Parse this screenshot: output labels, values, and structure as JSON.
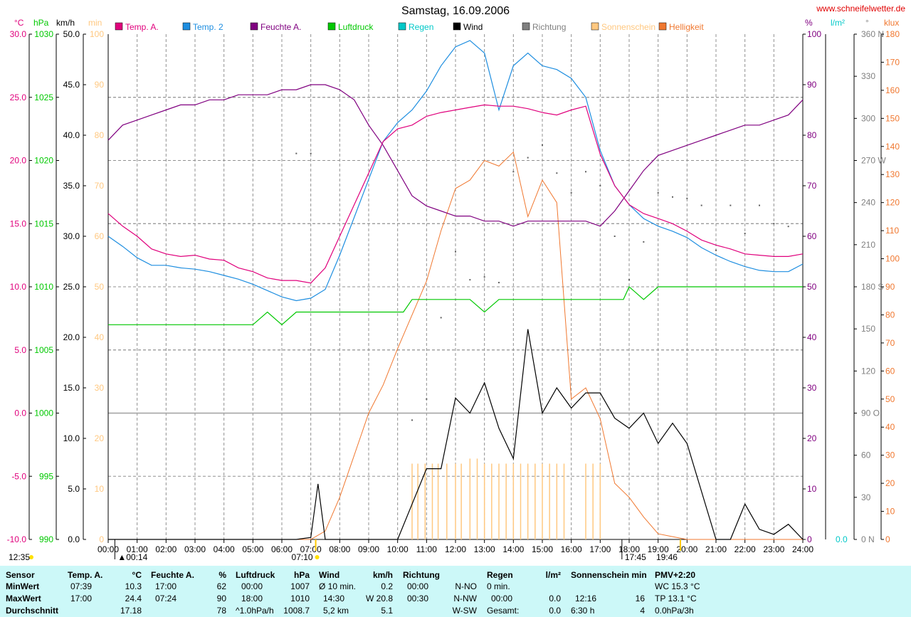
{
  "header": {
    "title": "Samstag, 16.09.2006",
    "website": "www.schneifelwetter.de"
  },
  "left_axes": {
    "temp_unit": "°C",
    "pressure_unit": "hPa",
    "wind_unit": "km/h",
    "sun_unit": "min",
    "temp_ticks": [
      "30.0",
      "25.0",
      "20.0",
      "15.0",
      "10.0",
      "5.0",
      "0.0",
      "-5.0",
      "-10.0"
    ],
    "pressure_ticks": [
      "1030",
      "1025",
      "1020",
      "1015",
      "1010",
      "1005",
      "1000",
      "995",
      "990"
    ],
    "wind_ticks": [
      "50.0",
      "45.0",
      "40.0",
      "35.0",
      "30.0",
      "25.0",
      "20.0",
      "15.0",
      "10.0",
      "5.0",
      "0.0"
    ],
    "sun_ticks": [
      "100",
      "90",
      "80",
      "70",
      "60",
      "50",
      "40",
      "30",
      "20",
      "10",
      "0"
    ]
  },
  "right_axes": {
    "humidity_unit": "%",
    "rain_unit": "l/m²",
    "direction_unit": "°",
    "light_unit": "klux",
    "humidity_ticks": [
      "100",
      "90",
      "80",
      "70",
      "60",
      "50",
      "40",
      "30",
      "20",
      "10",
      "0"
    ],
    "rain_ticks": [
      "0.0"
    ],
    "direction_ticks": [
      "360 N",
      "330",
      "300",
      "270 W",
      "240",
      "210",
      "180 S",
      "150",
      "120",
      "90 O",
      "60",
      "30",
      "0 N"
    ],
    "light_ticks": [
      "180",
      "170",
      "160",
      "150",
      "140",
      "130",
      "120",
      "110",
      "100",
      "90",
      "80",
      "70",
      "60",
      "50",
      "40",
      "30",
      "20",
      "10",
      "0"
    ]
  },
  "legend": [
    {
      "label": "Temp. A.",
      "color": "#e0007c"
    },
    {
      "label": "Temp. 2",
      "color": "#1e8ee0"
    },
    {
      "label": "Feuchte A.",
      "color": "#800080"
    },
    {
      "label": "Luftdruck",
      "color": "#00c800"
    },
    {
      "label": "Regen",
      "color": "#00c8c8"
    },
    {
      "label": "Wind",
      "color": "#000000"
    },
    {
      "label": "Richtung",
      "color": "#808080"
    },
    {
      "label": "Sonnenschein",
      "color": "#ffc880"
    },
    {
      "label": "Helligkeit",
      "color": "#f07830"
    }
  ],
  "x_ticks": [
    "00:00",
    "01:00",
    "02:00",
    "03:00",
    "04:00",
    "05:00",
    "06:00",
    "07:00",
    "08:00",
    "09:00",
    "10:00",
    "11:00",
    "12:00",
    "13:00",
    "14:00",
    "15:00",
    "16:00",
    "17:00",
    "18:00",
    "19:00",
    "20:00",
    "21:00",
    "22:00",
    "23:00",
    "24:00"
  ],
  "sun_markers": {
    "moonset": "12:35",
    "moonrise": "00:14",
    "sunrise": "07:10",
    "sunset_marker": "17:45",
    "sunset": "19:46"
  },
  "chart_data": {
    "type": "line",
    "title": "Samstag, 16.09.2006",
    "x_range": [
      "00:00",
      "24:00"
    ],
    "series": [
      {
        "name": "Temp. A.",
        "unit": "°C",
        "ylim": [
          -10,
          30
        ],
        "x": [
          0,
          0.5,
          1,
          1.5,
          2,
          2.5,
          3,
          3.5,
          4,
          4.5,
          5,
          5.5,
          6,
          6.5,
          7,
          7.5,
          8,
          8.5,
          9,
          9.5,
          10,
          10.5,
          11,
          11.5,
          12,
          12.5,
          13,
          13.5,
          14,
          14.5,
          15,
          15.5,
          16,
          16.5,
          17,
          17.5,
          18,
          18.5,
          19,
          19.5,
          20,
          20.5,
          21,
          21.5,
          22,
          22.5,
          23,
          23.5,
          24
        ],
        "y": [
          15.8,
          14.8,
          14.0,
          13.0,
          12.6,
          12.4,
          12.5,
          12.2,
          12.1,
          11.5,
          11.2,
          10.7,
          10.5,
          10.5,
          10.3,
          11.5,
          14.0,
          16.5,
          19.0,
          21.5,
          22.5,
          22.8,
          23.5,
          23.8,
          24.0,
          24.2,
          24.4,
          24.3,
          24.3,
          24.1,
          23.8,
          23.6,
          24.0,
          24.3,
          20.5,
          18.0,
          16.5,
          15.8,
          15.4,
          15.0,
          14.4,
          13.7,
          13.3,
          13.0,
          12.6,
          12.5,
          12.4,
          12.4,
          12.6
        ]
      },
      {
        "name": "Temp. 2",
        "unit": "°C",
        "ylim": [
          -10,
          30
        ],
        "x": [
          0,
          0.5,
          1,
          1.5,
          2,
          2.5,
          3,
          3.5,
          4,
          4.5,
          5,
          5.5,
          6,
          6.5,
          7,
          7.5,
          8,
          8.5,
          9,
          9.5,
          10,
          10.5,
          11,
          11.5,
          12,
          12.5,
          13,
          13.5,
          14,
          14.5,
          15,
          15.5,
          16,
          16.5,
          17,
          17.5,
          18,
          18.5,
          19,
          19.5,
          20,
          20.5,
          21,
          21.5,
          22,
          22.5,
          23,
          23.5,
          24
        ],
        "y": [
          14.0,
          13.2,
          12.3,
          11.7,
          11.7,
          11.5,
          11.4,
          11.2,
          10.9,
          10.6,
          10.2,
          9.7,
          9.2,
          8.9,
          9.1,
          9.8,
          12.5,
          15.5,
          18.5,
          21.5,
          23.0,
          24.0,
          25.5,
          27.5,
          29.0,
          29.5,
          28.5,
          24.0,
          27.5,
          28.5,
          27.5,
          27.2,
          26.5,
          25.0,
          20.8,
          18.0,
          16.5,
          15.4,
          14.8,
          14.4,
          13.9,
          13.1,
          12.5,
          12.0,
          11.6,
          11.3,
          11.2,
          11.2,
          11.8
        ]
      },
      {
        "name": "Feuchte A.",
        "unit": "%",
        "ylim": [
          0,
          100
        ],
        "x": [
          0,
          0.5,
          1,
          1.5,
          2,
          2.5,
          3,
          3.5,
          4,
          4.5,
          5,
          5.5,
          6,
          6.5,
          7,
          7.5,
          8,
          8.5,
          9,
          9.5,
          10,
          10.5,
          11,
          11.5,
          12,
          12.5,
          13,
          13.5,
          14,
          14.5,
          15,
          15.5,
          16,
          16.5,
          17,
          17.5,
          18,
          18.5,
          19,
          19.5,
          20,
          20.5,
          21,
          21.5,
          22,
          22.5,
          23,
          23.5,
          24
        ],
        "y": [
          79,
          82,
          83,
          84,
          85,
          86,
          86,
          87,
          87,
          88,
          88,
          88,
          89,
          89,
          90,
          90,
          89,
          87,
          82,
          78,
          73,
          68,
          66,
          65,
          64,
          64,
          63,
          63,
          62,
          63,
          63,
          63,
          63,
          63,
          62,
          65,
          69,
          73,
          76,
          77,
          78,
          79,
          80,
          81,
          82,
          82,
          83,
          84,
          87
        ]
      },
      {
        "name": "Luftdruck",
        "unit": "hPa",
        "ylim": [
          990,
          1030
        ],
        "x": [
          0,
          5,
          5.5,
          6,
          6.5,
          7,
          8,
          9,
          10,
          10.2,
          10.5,
          11,
          12,
          12.5,
          13,
          13.5,
          14,
          15,
          16,
          17,
          17.8,
          18,
          18.5,
          19,
          19.5,
          20,
          21,
          22,
          23,
          24
        ],
        "y": [
          1007,
          1007,
          1008,
          1007,
          1008,
          1008,
          1008,
          1008,
          1008,
          1008,
          1009,
          1009,
          1009,
          1009,
          1008,
          1009,
          1009,
          1009,
          1009,
          1009,
          1009,
          1010,
          1009,
          1010,
          1010,
          1010,
          1010,
          1010,
          1010,
          1010
        ]
      },
      {
        "name": "Wind",
        "unit": "km/h",
        "ylim": [
          0,
          50
        ],
        "x": [
          0,
          6.5,
          7,
          7.25,
          7.5,
          10,
          10.5,
          11,
          11.5,
          12,
          12.5,
          13,
          13.5,
          14,
          14.5,
          15,
          15.5,
          16,
          16.5,
          17,
          17.5,
          18,
          18.5,
          19,
          19.5,
          20,
          21,
          21.5,
          22,
          22.5,
          23,
          23.5,
          24
        ],
        "y": [
          0,
          0,
          0.2,
          5.5,
          0,
          0,
          3.5,
          7.0,
          7.0,
          14.0,
          12.5,
          15.5,
          11.0,
          8.0,
          20.8,
          12.5,
          15.0,
          13.0,
          14.5,
          14.5,
          12.0,
          11.0,
          12.5,
          9.5,
          11.5,
          9.5,
          0,
          0,
          3.5,
          1.0,
          0.5,
          1.5,
          0
        ]
      },
      {
        "name": "Helligkeit",
        "unit": "klux",
        "ylim": [
          0,
          180
        ],
        "x": [
          0,
          7,
          7.5,
          8,
          8.5,
          9,
          9.5,
          10,
          10.5,
          11,
          11.5,
          12,
          12.5,
          13,
          13.5,
          14,
          14.5,
          15,
          15.5,
          16,
          16.5,
          17,
          17.5,
          18,
          18.5,
          19,
          19.5,
          20,
          24
        ],
        "y": [
          0,
          0,
          3,
          15,
          30,
          45,
          55,
          68,
          80,
          92,
          110,
          125,
          128,
          135,
          133,
          138,
          115,
          128,
          120,
          50,
          54,
          43,
          20,
          15,
          8,
          2,
          1,
          0,
          0
        ]
      },
      {
        "name": "Sonnenschein",
        "unit": "min",
        "ylim": [
          0,
          100
        ],
        "x": [
          10.5,
          11,
          11.5,
          12,
          12.5,
          13,
          13.5,
          14,
          14.5,
          15,
          15.5,
          16.5,
          17
        ],
        "y": [
          15,
          15,
          15,
          15,
          16,
          15,
          15,
          15,
          15,
          15,
          15,
          15,
          15
        ]
      },
      {
        "name": "Richtung",
        "unit": "°",
        "ylim": [
          0,
          360
        ],
        "x": [
          6.5,
          7,
          10.5,
          11,
          11.5,
          12,
          12.5,
          13,
          13.5,
          14,
          14.5,
          15,
          15.5,
          16,
          16.5,
          17,
          17.5,
          18,
          18.5,
          19,
          19.5,
          20,
          20.5,
          21,
          21.5,
          22,
          22.5,
          23,
          23.5
        ],
        "y": [
          275,
          275,
          85,
          100,
          158,
          205,
          185,
          187,
          183,
          262,
          272,
          281,
          261,
          247,
          262,
          252,
          216,
          185,
          212,
          247,
          244,
          243,
          238,
          206,
          238,
          218,
          238,
          225,
          223
        ]
      }
    ]
  },
  "stats": {
    "sensor": {
      "header": "Sensor",
      "rows": [
        "MinWert",
        "MaxWert",
        "Durchschnitt"
      ]
    },
    "temp": {
      "header": "Temp. A.",
      "unit": "°C",
      "rows": [
        [
          "07:39",
          "10.3"
        ],
        [
          "17:00",
          "24.4"
        ],
        [
          "",
          "17.18"
        ]
      ]
    },
    "humidity": {
      "header": "Feuchte A.",
      "unit": "%",
      "rows": [
        [
          "17:00",
          "62"
        ],
        [
          "07:24",
          "90"
        ],
        [
          "",
          "78"
        ]
      ]
    },
    "pressure": {
      "header": "Luftdruck",
      "unit": "hPa",
      "rows": [
        [
          "00:00",
          "1007"
        ],
        [
          "18:00",
          "1010"
        ],
        [
          "^1.0hPa/h",
          "1008.7"
        ]
      ]
    },
    "wind": {
      "header": "Wind",
      "unit": "km/h",
      "rows": [
        [
          "Ø 10 min.",
          "0.2"
        ],
        [
          "14:30",
          "W 20.8"
        ],
        [
          "5,2 km",
          "5.1"
        ]
      ]
    },
    "direction": {
      "header": "Richtung",
      "rows": [
        [
          "00:00",
          "N-NO"
        ],
        [
          "00:30",
          "N-NW"
        ],
        [
          "",
          "W-SW"
        ]
      ]
    },
    "rain": {
      "header": "Regen",
      "unit": "l/m²",
      "rows": [
        [
          "0 min.",
          ""
        ],
        [
          "00:00",
          "0.0"
        ],
        [
          "Gesamt:",
          "0.0"
        ]
      ]
    },
    "sunshine": {
      "header": "Sonnenschein min",
      "rows": [
        [
          "",
          ""
        ],
        [
          "12:16",
          "16"
        ],
        [
          "6:30 h",
          "4"
        ]
      ]
    },
    "pmv": {
      "header": "PMV+2:20",
      "rows": [
        "WC 15.3 °C",
        "TP 13.1 °C",
        "0.0hPa/3h"
      ]
    }
  }
}
